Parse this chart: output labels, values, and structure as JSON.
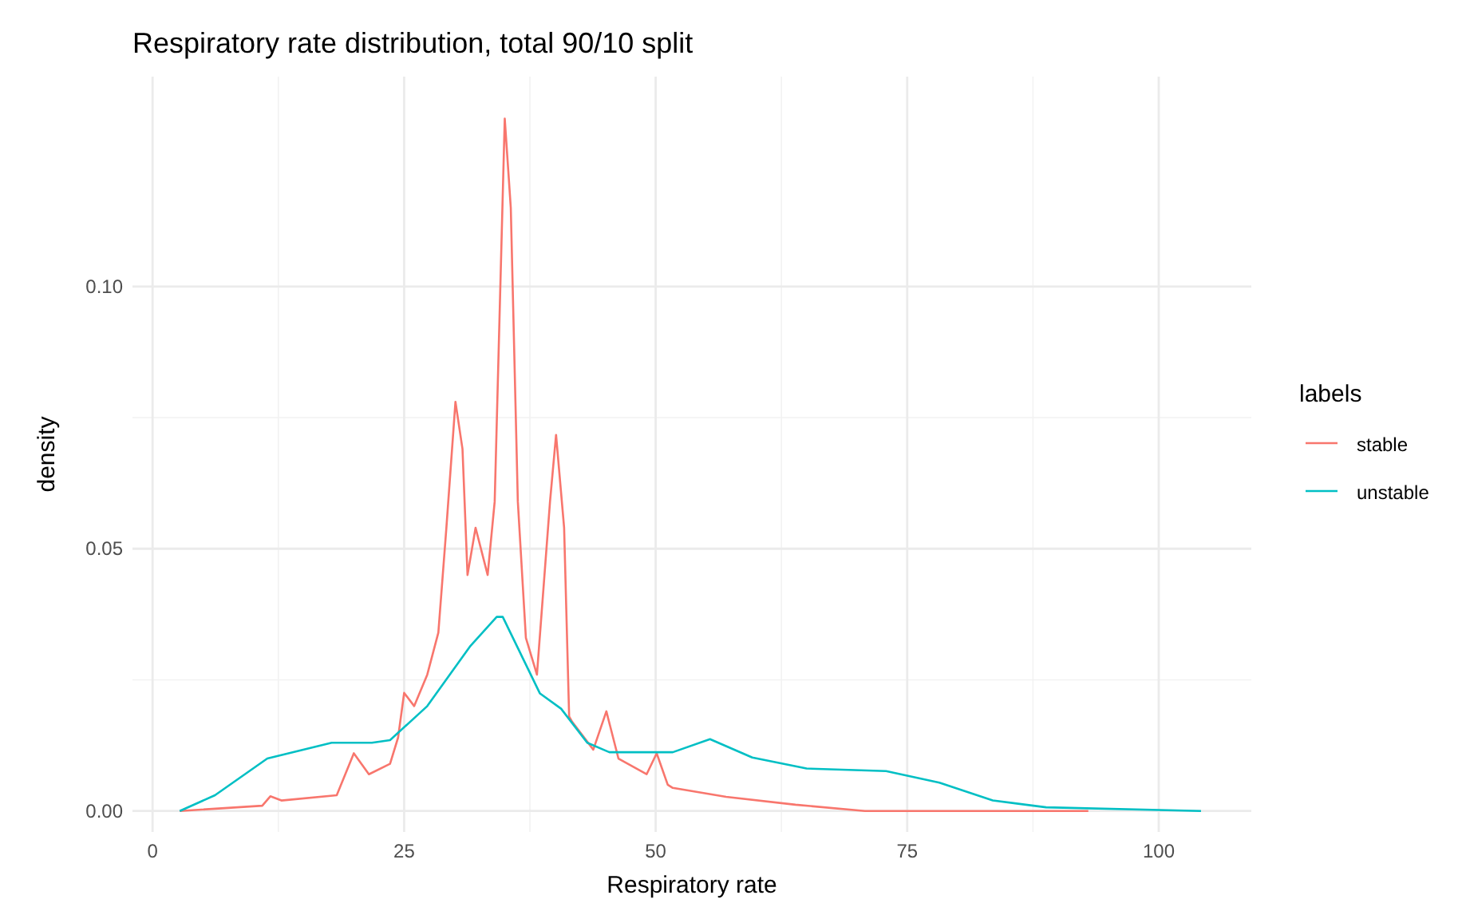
{
  "chart_data": {
    "type": "line",
    "title": "Respiratory rate distribution, total 90/10 split",
    "xlabel": "Respiratory rate",
    "ylabel": "density",
    "legend_title": "labels",
    "legend": "right",
    "grid": true,
    "xlim": [
      -2,
      109.2
    ],
    "ylim": [
      -0.004,
      0.14
    ],
    "xticks": [
      0,
      25,
      50,
      75,
      100
    ],
    "yticks": [
      {
        "value": 0,
        "label": "0.00"
      },
      {
        "value": 0.05,
        "label": "0.05"
      },
      {
        "value": 0.1,
        "label": "0.10"
      }
    ],
    "series": [
      {
        "name": "stable",
        "color": "#f8766d",
        "x": [
          2.7,
          10.9,
          11.7,
          12.8,
          18.3,
          20.0,
          21.5,
          23.6,
          24.4,
          25.0,
          26.0,
          27.3,
          28.4,
          29.2,
          30.1,
          30.8,
          31.3,
          32.1,
          33.3,
          34.0,
          35.0,
          35.6,
          36.3,
          37.1,
          38.2,
          39.5,
          40.1,
          40.9,
          41.4,
          41.7,
          43.8,
          45.1,
          46.3,
          49.1,
          50.1,
          51.2,
          51.7,
          57.0,
          63.9,
          70.8,
          93.0
        ],
        "values": [
          0,
          0.001,
          0.0028,
          0.002,
          0.003,
          0.011,
          0.007,
          0.009,
          0.014,
          0.0225,
          0.02,
          0.026,
          0.034,
          0.054,
          0.078,
          0.069,
          0.045,
          0.054,
          0.045,
          0.059,
          0.132,
          0.115,
          0.059,
          0.033,
          0.026,
          0.059,
          0.0717,
          0.054,
          0.018,
          0.017,
          0.0117,
          0.019,
          0.01,
          0.007,
          0.011,
          0.005,
          0.0044,
          0.0027,
          0.0012,
          0,
          0
        ]
      },
      {
        "name": "unstable",
        "color": "#00bfc4",
        "x": [
          2.7,
          6.2,
          11.4,
          17.8,
          21.8,
          23.6,
          27.3,
          31.6,
          34.2,
          34.8,
          38.5,
          40.6,
          43.2,
          45.4,
          51.7,
          55.4,
          59.6,
          65.0,
          72.9,
          78.2,
          83.5,
          88.8,
          104.2
        ],
        "values": [
          0,
          0.003,
          0.01,
          0.013,
          0.013,
          0.0135,
          0.02,
          0.0315,
          0.037,
          0.037,
          0.0224,
          0.0195,
          0.013,
          0.0112,
          0.0112,
          0.0137,
          0.0102,
          0.0081,
          0.0076,
          0.0054,
          0.002,
          0.0007,
          0
        ]
      }
    ]
  }
}
